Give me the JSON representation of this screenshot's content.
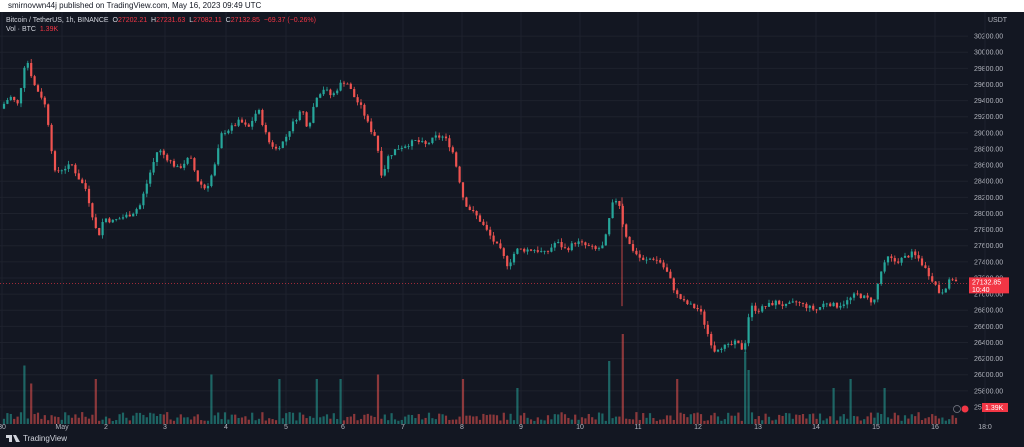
{
  "header": {
    "published": "smirnovwn44j published on TradingView.com, May 16, 2023 09:49 UTC"
  },
  "legend": {
    "symbol": "Bitcoin / TetherUS, 1h, BINANCE",
    "o_key": "O",
    "o": "27202.21",
    "h_key": "H",
    "h": "27231.63",
    "l_key": "L",
    "l": "27082.11",
    "c_key": "C",
    "c": "27132.85",
    "change": "−69.37 (−0.26%)",
    "vol_label": "Vol · BTC",
    "vol_value": "1.39K"
  },
  "footer": {
    "brand": "TradingView"
  },
  "colors": {
    "up": "#26a69a",
    "down": "#ef5350",
    "bg": "#131722",
    "grid": "#1e222d",
    "text": "#b2b5be",
    "price_tag": "#f23645"
  },
  "chart_data": {
    "type": "candlestick",
    "currency": "USDT",
    "y_ticks": [
      "30200.00",
      "30000.00",
      "29800.00",
      "29600.00",
      "29400.00",
      "29200.00",
      "29000.00",
      "28800.00",
      "28600.00",
      "28400.00",
      "28200.00",
      "28000.00",
      "27800.00",
      "27600.00",
      "27400.00",
      "27200.00",
      "27000.00",
      "26800.00",
      "26600.00",
      "26400.00",
      "26200.00",
      "26000.00",
      "25800.00",
      "25600.00"
    ],
    "ylim": [
      25500,
      30350
    ],
    "x_ticks": [
      "30",
      "May",
      "2",
      "3",
      "4",
      "5",
      "6",
      "7",
      "8",
      "9",
      "10",
      "11",
      "12",
      "13",
      "14",
      "15",
      "16",
      "18:0"
    ],
    "last_price": "27132.85",
    "last_price_countdown": "10:40",
    "last_volume": "1.39K",
    "path": [
      [
        0,
        29300
      ],
      [
        10,
        29450
      ],
      [
        18,
        29350
      ],
      [
        26,
        29950
      ],
      [
        34,
        29600
      ],
      [
        44,
        29400
      ],
      [
        50,
        29000
      ],
      [
        54,
        28500
      ],
      [
        62,
        28550
      ],
      [
        72,
        28600
      ],
      [
        78,
        28450
      ],
      [
        86,
        28300
      ],
      [
        92,
        28000
      ],
      [
        98,
        27700
      ],
      [
        104,
        27950
      ],
      [
        112,
        27900
      ],
      [
        122,
        27950
      ],
      [
        132,
        28000
      ],
      [
        140,
        28100
      ],
      [
        150,
        28500
      ],
      [
        158,
        28800
      ],
      [
        166,
        28700
      ],
      [
        178,
        28550
      ],
      [
        190,
        28700
      ],
      [
        198,
        28400
      ],
      [
        206,
        28300
      ],
      [
        214,
        28550
      ],
      [
        222,
        29000
      ],
      [
        230,
        29050
      ],
      [
        240,
        29150
      ],
      [
        248,
        29050
      ],
      [
        258,
        29300
      ],
      [
        268,
        28900
      ],
      [
        276,
        28800
      ],
      [
        284,
        28900
      ],
      [
        292,
        29100
      ],
      [
        302,
        29300
      ],
      [
        308,
        29050
      ],
      [
        316,
        29450
      ],
      [
        324,
        29550
      ],
      [
        332,
        29450
      ],
      [
        340,
        29600
      ],
      [
        346,
        29650
      ],
      [
        354,
        29450
      ],
      [
        362,
        29300
      ],
      [
        370,
        29050
      ],
      [
        376,
        28950
      ],
      [
        382,
        28450
      ],
      [
        388,
        28700
      ],
      [
        396,
        28800
      ],
      [
        406,
        28850
      ],
      [
        416,
        28900
      ],
      [
        426,
        28850
      ],
      [
        436,
        28950
      ],
      [
        444,
        28950
      ],
      [
        452,
        28800
      ],
      [
        458,
        28500
      ],
      [
        464,
        28150
      ],
      [
        470,
        28050
      ],
      [
        478,
        27950
      ],
      [
        486,
        27800
      ],
      [
        494,
        27650
      ],
      [
        500,
        27550
      ],
      [
        508,
        27350
      ],
      [
        516,
        27550
      ],
      [
        526,
        27550
      ],
      [
        536,
        27550
      ],
      [
        546,
        27500
      ],
      [
        556,
        27650
      ],
      [
        566,
        27550
      ],
      [
        576,
        27650
      ],
      [
        586,
        27600
      ],
      [
        596,
        27550
      ],
      [
        604,
        27600
      ],
      [
        612,
        28100
      ],
      [
        618,
        28200
      ],
      [
        624,
        27800
      ],
      [
        630,
        27600
      ],
      [
        636,
        27500
      ],
      [
        644,
        27400
      ],
      [
        652,
        27450
      ],
      [
        660,
        27400
      ],
      [
        668,
        27250
      ],
      [
        676,
        27000
      ],
      [
        684,
        26900
      ],
      [
        692,
        26850
      ],
      [
        700,
        26800
      ],
      [
        708,
        26500
      ],
      [
        714,
        26300
      ],
      [
        720,
        26350
      ],
      [
        728,
        26350
      ],
      [
        736,
        26400
      ],
      [
        744,
        26300
      ],
      [
        750,
        26850
      ],
      [
        758,
        26800
      ],
      [
        766,
        26850
      ],
      [
        776,
        26900
      ],
      [
        786,
        26850
      ],
      [
        796,
        26900
      ],
      [
        806,
        26850
      ],
      [
        816,
        26800
      ],
      [
        826,
        26900
      ],
      [
        836,
        26850
      ],
      [
        846,
        26900
      ],
      [
        856,
        27000
      ],
      [
        866,
        26950
      ],
      [
        874,
        26900
      ],
      [
        880,
        27250
      ],
      [
        888,
        27450
      ],
      [
        896,
        27400
      ],
      [
        904,
        27450
      ],
      [
        912,
        27500
      ],
      [
        918,
        27450
      ],
      [
        926,
        27300
      ],
      [
        934,
        27150
      ],
      [
        940,
        27000
      ],
      [
        946,
        27100
      ],
      [
        952,
        27200
      ],
      [
        958,
        27130
      ]
    ],
    "volume_spikes": [
      [
        24,
        0.65
      ],
      [
        30,
        0.45
      ],
      [
        96,
        0.5
      ],
      [
        212,
        0.55
      ],
      [
        278,
        0.5
      ],
      [
        318,
        0.5
      ],
      [
        340,
        0.5
      ],
      [
        378,
        0.55
      ],
      [
        462,
        0.5
      ],
      [
        518,
        0.4
      ],
      [
        610,
        0.7
      ],
      [
        622,
        1.0
      ],
      [
        676,
        0.5
      ],
      [
        744,
        0.8
      ],
      [
        748,
        0.6
      ],
      [
        832,
        0.4
      ],
      [
        852,
        0.5
      ],
      [
        886,
        0.4
      ]
    ]
  }
}
